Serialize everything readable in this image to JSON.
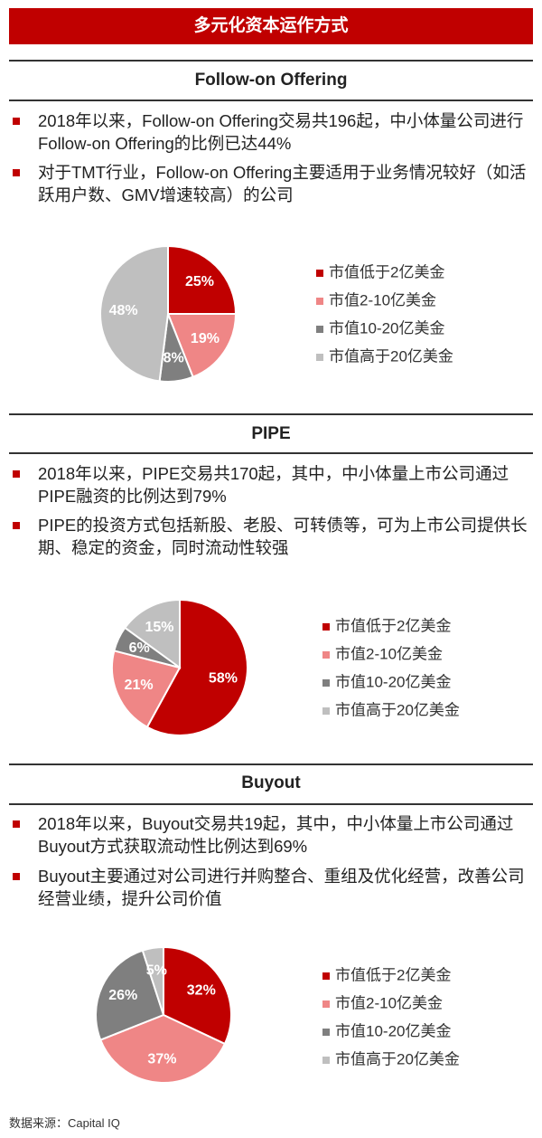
{
  "title": "多元化资本运作方式",
  "sections": [
    {
      "title": "Follow-on Offering",
      "bullets": [
        "2018年以来，Follow-on Offering交易共196起，中小体量公司进行Follow-on Offering的比例已达44%",
        "对于TMT行业，Follow-on Offering主要适用于业务情况较好（如活跃用户数、GMV增速较高）的公司"
      ]
    },
    {
      "title": "PIPE",
      "bullets": [
        "2018年以来，PIPE交易共170起，其中，中小体量上市公司通过PIPE融资的比例达到79%",
        "PIPE的投资方式包括新股、老股、可转债等，可为上市公司提供长期、稳定的资金，同时流动性较强"
      ]
    },
    {
      "title": "Buyout",
      "bullets": [
        "2018年以来，Buyout交易共19起，其中，中小体量上市公司通过Buyout方式获取流动性比例达到69%",
        "Buyout主要通过对公司进行并购整合、重组及优化经营，改善公司经营业绩，提升公司价值"
      ]
    }
  ],
  "chart_data": [
    {
      "type": "pie",
      "categories": [
        "市值低于2亿美金",
        "市值2-10亿美金",
        "市值10-20亿美金",
        "市值高于20亿美金"
      ],
      "values": [
        25,
        19,
        8,
        48
      ],
      "value_labels": [
        "25%",
        "19%",
        "8%",
        "48%"
      ],
      "colors": [
        "#c00000",
        "#ef8686",
        "#7f7f7f",
        "#bfbfbf"
      ]
    },
    {
      "type": "pie",
      "categories": [
        "市值低于2亿美金",
        "市值2-10亿美金",
        "市值10-20亿美金",
        "市值高于20亿美金"
      ],
      "values": [
        58,
        21,
        6,
        15
      ],
      "value_labels": [
        "58%",
        "21%",
        "6%",
        "15%"
      ],
      "colors": [
        "#c00000",
        "#ef8686",
        "#7f7f7f",
        "#bfbfbf"
      ]
    },
    {
      "type": "pie",
      "categories": [
        "市值低于2亿美金",
        "市值2-10亿美金",
        "市值10-20亿美金",
        "市值高于20亿美金"
      ],
      "values": [
        32,
        37,
        26,
        5
      ],
      "value_labels": [
        "32%",
        "37%",
        "26%",
        "5%"
      ],
      "colors": [
        "#c00000",
        "#ef8686",
        "#7f7f7f",
        "#bfbfbf"
      ]
    }
  ],
  "source": "数据来源：Capital IQ"
}
